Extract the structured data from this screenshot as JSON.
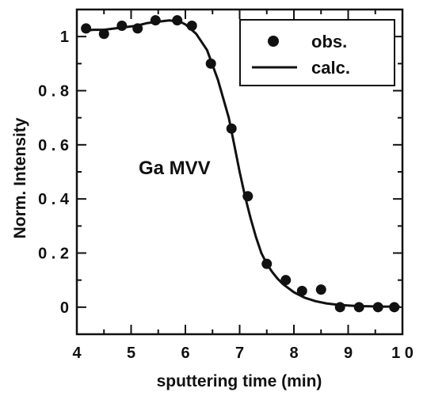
{
  "chart_data": {
    "type": "scatter",
    "xlabel": "sputtering time (min)",
    "ylabel": "Norm. Intensity",
    "xlim": [
      4,
      10
    ],
    "ylim": [
      -0.1,
      1.1
    ],
    "x_ticks": [
      4,
      5,
      6,
      7,
      8,
      9,
      10
    ],
    "x_tick_labels": [
      "4",
      "5",
      "6",
      "7",
      "8",
      "9",
      "1 0"
    ],
    "y_ticks": [
      0,
      0.2,
      0.4,
      0.6,
      0.8,
      1
    ],
    "y_tick_labels": [
      "0",
      "0 . 2",
      "0 . 4",
      "0 . 6",
      "0 . 8",
      "1"
    ],
    "annotation": "Ga  MVV",
    "legend": {
      "placement": "top-right",
      "entries": [
        {
          "label": "obs.",
          "marker": "dot"
        },
        {
          "label": "calc.",
          "marker": "line"
        }
      ]
    },
    "series": [
      {
        "name": "obs.",
        "kind": "points",
        "x": [
          4.17,
          4.5,
          4.83,
          5.12,
          5.45,
          5.85,
          6.12,
          6.47,
          6.85,
          7.15,
          7.5,
          7.85,
          8.15,
          8.5,
          8.85,
          9.2,
          9.55,
          9.85
        ],
        "y": [
          1.03,
          1.01,
          1.04,
          1.03,
          1.06,
          1.06,
          1.04,
          0.9,
          0.66,
          0.41,
          0.16,
          0.1,
          0.06,
          0.065,
          0.0,
          0.0,
          0.0,
          0.0
        ]
      },
      {
        "name": "calc.",
        "kind": "line",
        "x": [
          4.1,
          4.3,
          4.5,
          4.7,
          4.9,
          5.1,
          5.3,
          5.5,
          5.7,
          5.9,
          6.0,
          6.2,
          6.4,
          6.6,
          6.8,
          6.9,
          7.0,
          7.1,
          7.2,
          7.3,
          7.4,
          7.5,
          7.6,
          7.7,
          7.8,
          8.0,
          8.2,
          8.4,
          8.6,
          8.8,
          9.0,
          9.2,
          9.4,
          9.6,
          9.8,
          9.95
        ],
        "y": [
          1.02,
          1.025,
          1.025,
          1.03,
          1.035,
          1.04,
          1.05,
          1.055,
          1.06,
          1.055,
          1.045,
          1.01,
          0.95,
          0.84,
          0.7,
          0.6,
          0.5,
          0.41,
          0.33,
          0.26,
          0.2,
          0.16,
          0.13,
          0.105,
          0.085,
          0.055,
          0.035,
          0.022,
          0.014,
          0.009,
          0.006,
          0.004,
          0.003,
          0.002,
          0.002,
          0.002
        ]
      }
    ]
  }
}
